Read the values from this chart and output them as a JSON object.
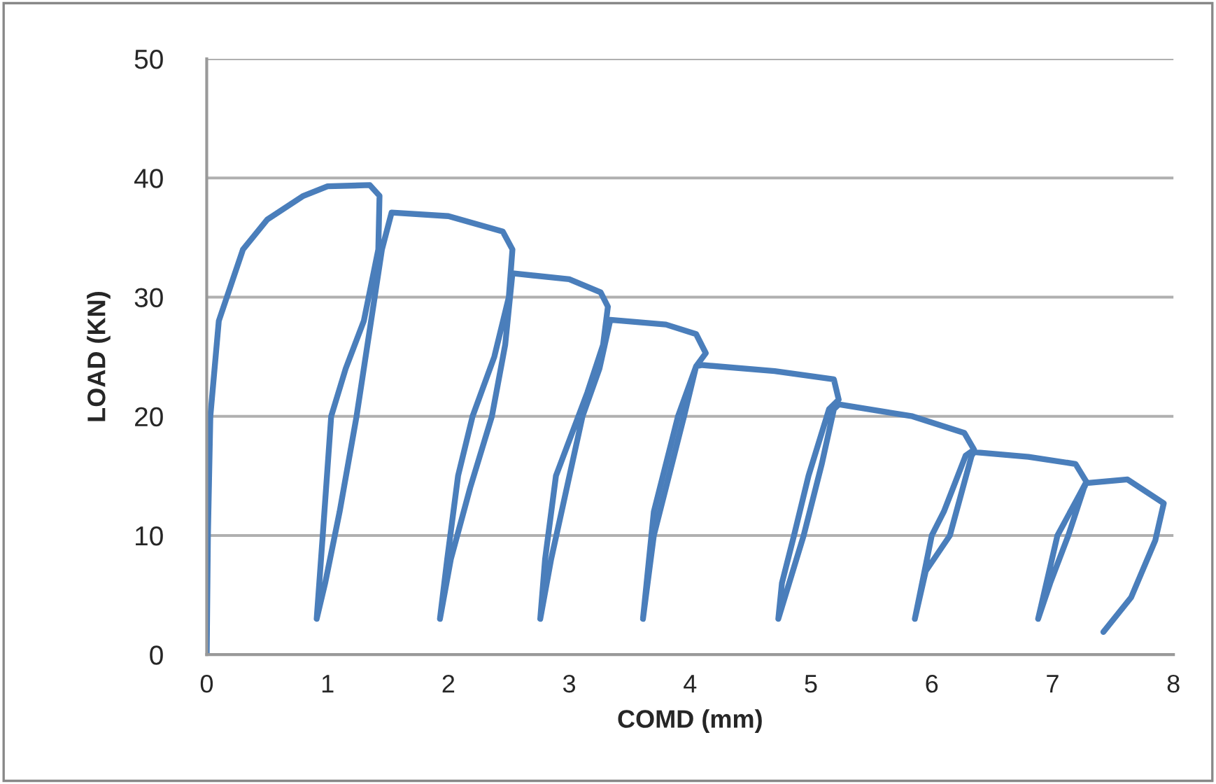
{
  "chart_data": {
    "type": "line",
    "xlabel": "COMD (mm)",
    "ylabel": "LOAD (KN)",
    "xlim": [
      0,
      8
    ],
    "xticks": [
      0,
      1,
      2,
      3,
      4,
      5,
      6,
      7,
      8
    ],
    "ylim": [
      0,
      50
    ],
    "yticks": [
      0,
      10,
      20,
      30,
      40,
      50
    ],
    "grid": "y",
    "marker": "none",
    "line_style": "solid",
    "series": [
      {
        "color": "#4a7ebb",
        "x": [
          0,
          0.01,
          0.03,
          0.1,
          0.2,
          0.3,
          0.5,
          0.8,
          1.0,
          1.35,
          1.43,
          1.42,
          1.3,
          1.15,
          1.03,
          0.96,
          0.91,
          0.98,
          1.1,
          1.24,
          1.36,
          1.45,
          1.53,
          2.0,
          2.45,
          2.53,
          2.5,
          2.38,
          2.2,
          2.08,
          1.99,
          1.93,
          2.02,
          2.18,
          2.36,
          2.47,
          2.53,
          3.0,
          3.26,
          3.32,
          3.28,
          3.15,
          2.89,
          2.8,
          2.76,
          2.85,
          3.11,
          3.25,
          3.34,
          3.8,
          4.05,
          4.13,
          4.05,
          3.9,
          3.7,
          3.64,
          3.61,
          3.7,
          3.95,
          4.05,
          4.1,
          4.7,
          5.19,
          5.23,
          5.15,
          4.98,
          4.86,
          4.76,
          4.73,
          4.82,
          4.94,
          5.09,
          5.19,
          5.23,
          5.84,
          6.27,
          6.35,
          6.28,
          6.1,
          6.0,
          5.86,
          5.95,
          6.15,
          6.33,
          6.35,
          6.8,
          7.19,
          7.28,
          7.2,
          7.04,
          6.88,
          6.98,
          7.13,
          7.26,
          7.28,
          7.62,
          7.92,
          7.85,
          7.65,
          7.42
        ],
        "values": [
          0,
          10,
          20,
          28,
          31,
          34,
          36.5,
          38.5,
          39.3,
          39.4,
          38.5,
          34,
          28,
          24,
          20,
          10,
          3,
          6,
          12,
          20,
          28,
          34,
          37.1,
          36.8,
          35.5,
          34,
          30,
          25,
          20,
          15,
          8,
          3,
          8,
          14,
          20,
          26,
          32,
          31.5,
          30.4,
          29.2,
          26,
          22,
          15,
          8,
          3,
          8,
          20,
          24,
          28.1,
          27.7,
          26.9,
          25.3,
          24.2,
          20,
          12,
          6,
          3,
          10,
          20,
          24.2,
          24.3,
          23.8,
          23.1,
          21.4,
          20.6,
          15,
          10,
          6,
          3,
          6,
          10,
          16,
          20.6,
          21.0,
          20.0,
          18.6,
          17.2,
          16.7,
          12,
          10,
          3,
          7,
          10,
          16.7,
          17.0,
          16.6,
          16.0,
          14.5,
          13,
          10,
          3,
          6,
          10,
          14,
          14.4,
          14.7,
          12.7,
          9.6,
          4.8,
          1.9
        ]
      }
    ]
  }
}
